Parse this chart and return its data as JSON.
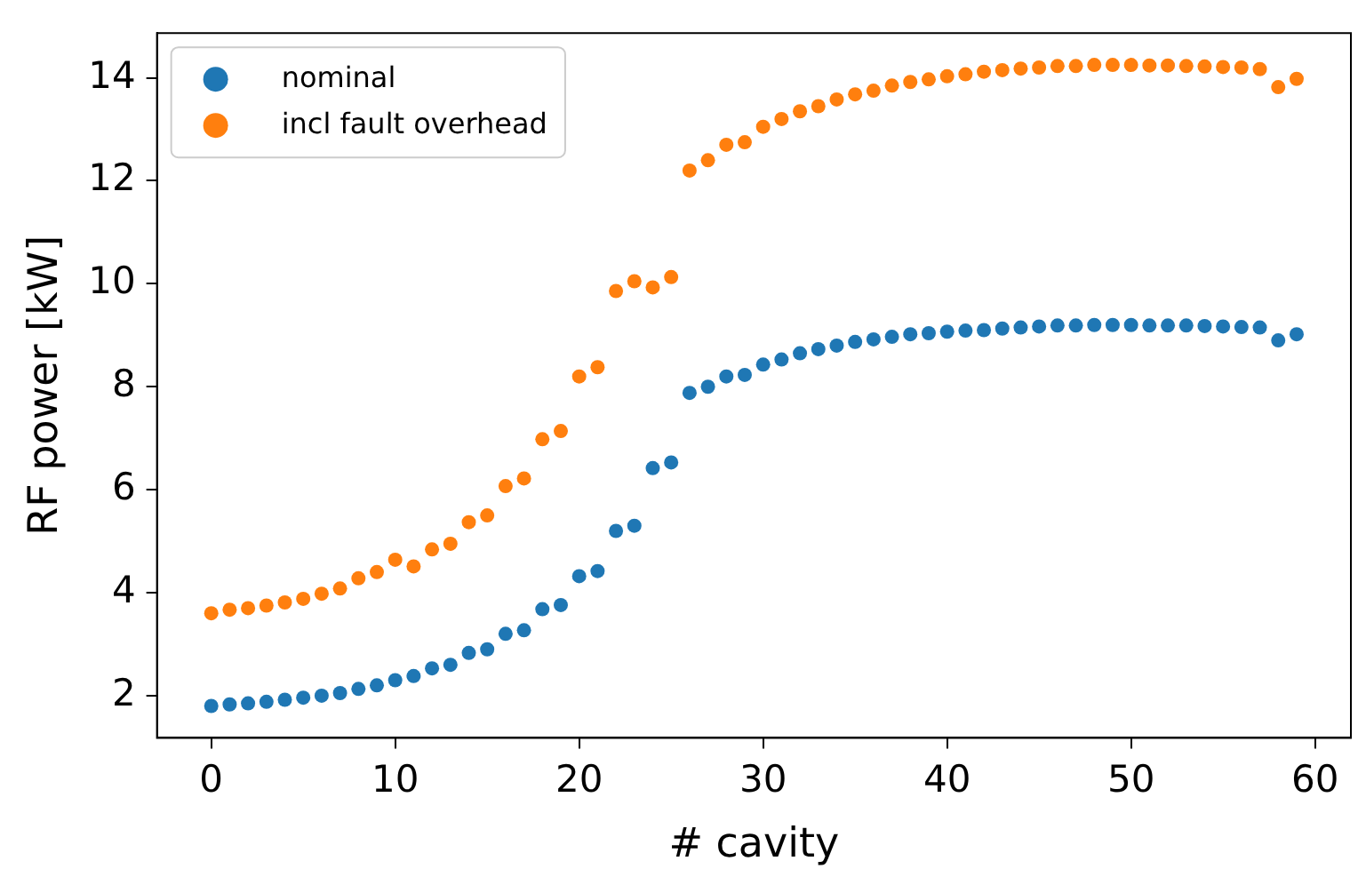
{
  "chart_data": {
    "type": "scatter",
    "xlabel": "# cavity",
    "ylabel": "RF power [kW]",
    "x": [
      0,
      1,
      2,
      3,
      4,
      5,
      6,
      7,
      8,
      9,
      10,
      11,
      12,
      13,
      14,
      15,
      16,
      17,
      18,
      19,
      20,
      21,
      22,
      23,
      24,
      25,
      26,
      27,
      28,
      29,
      30,
      31,
      32,
      33,
      34,
      35,
      36,
      37,
      38,
      39,
      40,
      41,
      42,
      43,
      44,
      45,
      46,
      47,
      48,
      49,
      50,
      51,
      52,
      53,
      54,
      55,
      56,
      57,
      58,
      59
    ],
    "series": [
      {
        "name": "nominal",
        "color": "#1f77b4",
        "values": [
          1.8,
          1.83,
          1.85,
          1.88,
          1.92,
          1.96,
          2.0,
          2.05,
          2.13,
          2.2,
          2.3,
          2.38,
          2.53,
          2.6,
          2.83,
          2.9,
          3.2,
          3.27,
          3.68,
          3.76,
          4.32,
          4.42,
          5.2,
          5.3,
          6.42,
          6.53,
          7.88,
          8.0,
          8.2,
          8.23,
          8.43,
          8.53,
          8.65,
          8.73,
          8.8,
          8.87,
          8.92,
          8.97,
          9.02,
          9.04,
          9.07,
          9.09,
          9.1,
          9.13,
          9.15,
          9.17,
          9.19,
          9.19,
          9.2,
          9.2,
          9.2,
          9.19,
          9.19,
          9.19,
          9.18,
          9.17,
          9.16,
          9.15,
          8.9,
          9.02
        ]
      },
      {
        "name": "incl fault overhead",
        "color": "#ff7f0e",
        "values": [
          3.6,
          3.67,
          3.7,
          3.75,
          3.81,
          3.88,
          3.98,
          4.08,
          4.28,
          4.4,
          4.64,
          4.51,
          4.84,
          4.95,
          5.37,
          5.5,
          6.07,
          6.22,
          6.98,
          7.14,
          8.2,
          8.38,
          9.86,
          10.05,
          9.93,
          10.13,
          12.2,
          12.4,
          12.7,
          12.75,
          13.05,
          13.2,
          13.35,
          13.45,
          13.58,
          13.68,
          13.75,
          13.85,
          13.92,
          13.97,
          14.03,
          14.07,
          14.12,
          14.15,
          14.18,
          14.2,
          14.23,
          14.23,
          14.25,
          14.25,
          14.25,
          14.24,
          14.24,
          14.23,
          14.22,
          14.21,
          14.2,
          14.17,
          13.82,
          13.98
        ]
      }
    ],
    "xlim": [
      -2.95,
      61.95
    ],
    "xticks": [
      0,
      10,
      20,
      30,
      40,
      50,
      60
    ],
    "ylim": [
      1.18,
      14.87
    ],
    "yticks": [
      2,
      4,
      6,
      8,
      10,
      12,
      14
    ],
    "grid": false,
    "legend": "top left",
    "marker": "circle"
  }
}
